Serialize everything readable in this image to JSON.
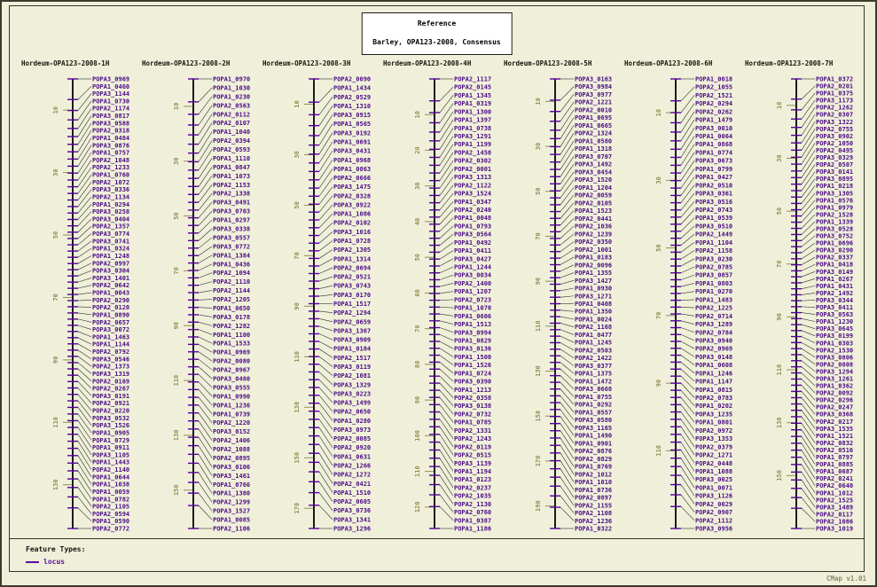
{
  "title": {
    "line1": "Reference",
    "line2": "Barley, OPA123-2008, Consensus"
  },
  "legend": {
    "heading": "Feature Types:",
    "items": [
      {
        "label": "locus",
        "symbol": "dash"
      }
    ]
  },
  "footer": {
    "version": "CMap v1.01"
  },
  "colors": {
    "background": "#f0f0da",
    "locus_label": "#4a0b86",
    "feature_tick": "#55009a",
    "ruler_number": "#8f8f55",
    "connector": "#2e2e2e",
    "backbone": "#1a1a1a",
    "legend_locus": "#5a0b9e"
  },
  "maps": [
    {
      "name": "Hordeum-OPA123-2008-1H",
      "max_cm": 144,
      "ruler_ticks": [
        10,
        30,
        50,
        70,
        90,
        110,
        130
      ],
      "loci": [
        "POPA3_0969",
        "POPA1_0460",
        "POPA3_1144",
        "POPA1_0730",
        "POPA2_1174",
        "POPA3_0817",
        "POPA3_0588",
        "POPA2_0318",
        "POPA1_0484",
        "POPA3_0876",
        "POPA1_0757",
        "POPA2_1048",
        "POPA2_1233",
        "POPA1_0760",
        "POPA2_1072",
        "POPA3_0336",
        "POPA2_1134",
        "POPA1_0294",
        "POPA3_0258",
        "POPA3_0404",
        "POPA2_1357",
        "POPA3_0774",
        "POPA3_0741",
        "POPA1_0324",
        "POPA1_1248",
        "POPA2_0997",
        "POPA3_0304",
        "POPA3_1401",
        "POPA2_0642",
        "POPA1_0043",
        "POPA2_0290",
        "POPA2_0120",
        "POPA1_0890",
        "POPA2_0657",
        "POPA3_0072",
        "POPA1_1463",
        "POPA1_1144",
        "POPA2_0792",
        "POPA3_0546",
        "POPA2_1373",
        "POPA3_1319",
        "POPA2_0169",
        "POPA2_0267",
        "POPA3_0191",
        "POPA2_0921",
        "POPA2_0220",
        "POPA3_0532",
        "POPA3_1526",
        "POPA1_0905",
        "POPA1_0729",
        "POPA1_0911",
        "POPA3_1105",
        "POPA1_1443",
        "POPA2_1140",
        "POPA1_0644",
        "POPA1_1038",
        "POPA1_0059",
        "POPA1_0782",
        "POPA2_1105",
        "POPA2_0594",
        "POPA1_0590",
        "POPA2_0772"
      ]
    },
    {
      "name": "Hordeum-OPA123-2008-2H",
      "max_cm": 164,
      "ruler_ticks": [
        10,
        30,
        50,
        70,
        90,
        110,
        130,
        150
      ],
      "loci": [
        "POPA1_0970",
        "POPA1_1030",
        "POPA1_0230",
        "POPA2_0563",
        "POPA2_0112",
        "POPA2_0107",
        "POPA1_1040",
        "POPA2_0394",
        "POPA2_0593",
        "POPA1_1110",
        "POPA1_0847",
        "POPA1_1073",
        "POPA2_1153",
        "POPA2_1338",
        "POPA3_0491",
        "POPA3_0703",
        "POPA1_0297",
        "POPA3_0338",
        "POPA3_0557",
        "POPA3_0772",
        "POPA1_1384",
        "POPA1_0436",
        "POPA2_1094",
        "POPA2_1110",
        "POPA2_1144",
        "POPA2_1205",
        "POPA1_0650",
        "POPA3_0178",
        "POPA2_1282",
        "POPA1_1100",
        "POPA1_1533",
        "POPA1_0969",
        "POPA2_0080",
        "POPA2_0967",
        "POPA3_0480",
        "POPA3_0555",
        "POPA1_0990",
        "POPA1_1236",
        "POPA1_0739",
        "POPA2_1220",
        "POPA3_0152",
        "POPA2_1406",
        "POPA2_1088",
        "POPA2_0895",
        "POPA3_0106",
        "POPA3_1461",
        "POPA1_0766",
        "POPA1_1380",
        "POPA2_1299",
        "POPA3_1527",
        "POPA1_0085",
        "POPA2_1106"
      ]
    },
    {
      "name": "Hordeum-OPA123-2008-3H",
      "max_cm": 178,
      "ruler_ticks": [
        10,
        30,
        50,
        70,
        90,
        110,
        130,
        150,
        170
      ],
      "loci": [
        "POPA2_0090",
        "POPA1_1434",
        "POPA2_0529",
        "POPA1_1310",
        "POPA3_0915",
        "POPA1_0565",
        "POPA3_0192",
        "POPA1_0691",
        "POPA3_0431",
        "POPA1_0968",
        "POPA1_0863",
        "POPA2_0666",
        "POPA3_1475",
        "POPA2_0328",
        "POPA3_0922",
        "POPA1_1086",
        "POPA2_0102",
        "POPA3_1016",
        "POPA1_0728",
        "POPA2_1305",
        "POPA1_1314",
        "POPA2_0694",
        "POPA2_0521",
        "POPA3_0743",
        "POPA3_0170",
        "POPA1_1517",
        "POPA2_1294",
        "POPA2_0659",
        "POPA3_1367",
        "POPA3_0909",
        "POPA1_0184",
        "POPA2_1517",
        "POPA3_0119",
        "POPA2_1081",
        "POPA3_1329",
        "POPA3_0223",
        "POPA3_1499",
        "POPA2_0650",
        "POPA1_0280",
        "POPA3_0973",
        "POPA2_0085",
        "POPA2_0920",
        "POPA1_0631",
        "POPA2_1266",
        "POPA2_1272",
        "POPA2_0421",
        "POPA1_1510",
        "POPA2_0605",
        "POPA3_0736",
        "POPA3_1341",
        "POPA3_1296"
      ]
    },
    {
      "name": "Hordeum-OPA123-2008-4H",
      "max_cm": 126,
      "ruler_ticks": [
        10,
        20,
        30,
        40,
        50,
        60,
        70,
        80,
        90,
        100,
        110,
        120
      ],
      "loci": [
        "POPA2_1117",
        "POPA2_0145",
        "POPA1_1345",
        "POPA1_0319",
        "POPA1_1300",
        "POPA1_1397",
        "POPA1_0738",
        "POPA3_1291",
        "POPA1_1199",
        "POPA2_1458",
        "POPA2_0302",
        "POPA2_0001",
        "POPA3_1313",
        "POPA2_1122",
        "POPA3_1524",
        "POPA1_0347",
        "POPA2_0240",
        "POPA1_0048",
        "POPA1_0793",
        "POPA3_0564",
        "POPA1_0492",
        "POPA1_0411",
        "POPA3_0427",
        "POPA1_1244",
        "POPA3_0034",
        "POPA2_1400",
        "POPA1_1207",
        "POPA2_0723",
        "POPA1_1070",
        "POPA1_0606",
        "POPA1_1513",
        "POPA3_0994",
        "POPA1_0829",
        "POPA3_0136",
        "POPA1_1500",
        "POPA1_1526",
        "POPA1_0724",
        "POPA3_0390",
        "POPA1_1213",
        "POPA2_0358",
        "POPA3_0138",
        "POPA2_0732",
        "POPA1_0785",
        "POPA2_1331",
        "POPA2_1243",
        "POPA2_0119",
        "POPA2_0515",
        "POPA3_1139",
        "POPA1_1194",
        "POPA1_0123",
        "POPA2_0237",
        "POPA2_1035",
        "POPA2_1130",
        "POPA2_0760",
        "POPA1_0387",
        "POPA1_1186"
      ]
    },
    {
      "name": "Hordeum-OPA123-2008-5H",
      "max_cm": 200,
      "ruler_ticks": [
        10,
        30,
        50,
        70,
        90,
        110,
        130,
        150,
        170,
        190
      ],
      "loci": [
        "POPA3_0163",
        "POPA3_0984",
        "POPA3_0977",
        "POPA2_1221",
        "POPA2_0010",
        "POPA1_0695",
        "POPA1_0665",
        "POPA2_1324",
        "POPA1_0580",
        "POPA1_1318",
        "POPA3_0707",
        "POPA3_1492",
        "POPA3_0454",
        "POPA3_1520",
        "POPA1_1204",
        "POPA2_0059",
        "POPA2_0105",
        "POPA1_1523",
        "POPA2_0441",
        "POPA2_1036",
        "POPA2_1239",
        "POPA2_0350",
        "POPA2_1001",
        "POPA1_0183",
        "POPA2_0096",
        "POPA1_1355",
        "POPA3_1427",
        "POPA1_0930",
        "POPA3_1271",
        "POPA1_0408",
        "POPA1_1350",
        "POPA1_0024",
        "POPA2_1168",
        "POPA1_0477",
        "POPA1_1245",
        "POPA2_0503",
        "POPA2_1422",
        "POPA3_0377",
        "POPA1_1375",
        "POPA1_1472",
        "POPA3_0668",
        "POPA1_0755",
        "POPA1_0292",
        "POPA1_0557",
        "POPA3_0580",
        "POPA3_1165",
        "POPA1_1490",
        "POPA1_0901",
        "POPA2_0876",
        "POPA2_0829",
        "POPA1_0769",
        "POPA2_1012",
        "POPA1_1010",
        "POPA1_0736",
        "POPA2_0897",
        "POPA2_1155",
        "POPA2_1108",
        "POPA2_1236",
        "POPA1_0322"
      ]
    },
    {
      "name": "Hordeum-OPA123-2008-6H",
      "max_cm": 133,
      "ruler_ticks": [
        10,
        30,
        50,
        70,
        90,
        110
      ],
      "loci": [
        "POPA1_0018",
        "POPA2_1055",
        "POPA2_1521",
        "POPA2_0294",
        "POPA2_0262",
        "POPA1_1479",
        "POPA3_0010",
        "POPA1_0064",
        "POPA1_0868",
        "POPA1_0774",
        "POPA3_0673",
        "POPA1_0799",
        "POPA1_0427",
        "POPA2_0510",
        "POPA3_0361",
        "POPA3_0516",
        "POPA2_0743",
        "POPA1_0539",
        "POPA3_0510",
        "POPA2_1449",
        "POPA1_1104",
        "POPA2_1158",
        "POPA3_0230",
        "POPA2_0785",
        "POPA3_0857",
        "POPA1_0803",
        "POPA1_0270",
        "POPA1_1483",
        "POPA2_1225",
        "POPA2_0714",
        "POPA3_1289",
        "POPA2_0784",
        "POPA3_0940",
        "POPA2_0969",
        "POPA3_0148",
        "POPA1_0608",
        "POPA1_1246",
        "POPA1_1147",
        "POPA1_0815",
        "POPA2_0783",
        "POPA1_0202",
        "POPA3_1235",
        "POPA1_0801",
        "POPA2_0972",
        "POPA3_1353",
        "POPA2_0379",
        "POPA2_1271",
        "POPA2_0448",
        "POPA1_1088",
        "POPA3_0025",
        "POPA1_0071",
        "POPA3_1126",
        "POPA2_0029",
        "POPA2_0907",
        "POPA2_1112",
        "POPA3_0956"
      ]
    },
    {
      "name": "Hordeum-OPA123-2008-7H",
      "max_cm": 170,
      "ruler_ticks": [
        10,
        30,
        50,
        70,
        90,
        110,
        130,
        150
      ],
      "loci": [
        "POPA1_0372",
        "POPA2_0201",
        "POPA1_0375",
        "POPA3_1173",
        "POPA2_1262",
        "POPA2_0307",
        "POPA3_1322",
        "POPA2_0755",
        "POPA3_0902",
        "POPA2_1050",
        "POPA2_0495",
        "POPA3_0329",
        "POPA2_0507",
        "POPA3_0141",
        "POPA3_0895",
        "POPA1_0218",
        "POPA3_1305",
        "POPA1_0576",
        "POPA1_0979",
        "POPA2_1528",
        "POPA1_1339",
        "POPA3_0528",
        "POPA3_0752",
        "POPA1_0696",
        "POPA3_0290",
        "POPA2_0337",
        "POPA1_0418",
        "POPA3_0149",
        "POPA1_0267",
        "POPA1_0431",
        "POPA2_1492",
        "POPA3_0344",
        "POPA3_0411",
        "POPA3_0563",
        "POPA1_1230",
        "POPA3_0645",
        "POPA3_0199",
        "POPA1_0303",
        "POPA2_1530",
        "POPA3_0806",
        "POPA2_0808",
        "POPA3_1294",
        "POPA3_1261",
        "POPA1_0362",
        "POPA2_0092",
        "POPA2_0296",
        "POPA2_0247",
        "POPA3_0368",
        "POPA2_0217",
        "POPA3_1535",
        "POPA1_1521",
        "POPA2_0832",
        "POPA2_0516",
        "POPA1_0797",
        "POPA1_0885",
        "POPA1_0687",
        "POPA2_0241",
        "POPA2_0640",
        "POPA1_1012",
        "POPA2_1525",
        "POPA3_1489",
        "POPA2_0117",
        "POPA2_1086",
        "POPA3_1019"
      ]
    }
  ]
}
